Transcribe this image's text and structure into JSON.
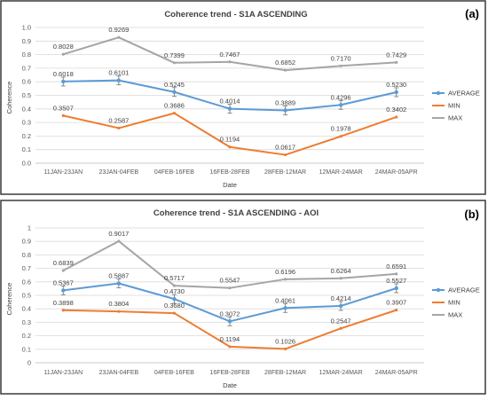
{
  "chart_data": [
    {
      "type": "line",
      "panel_label": "(a)",
      "title": "Coherence trend - S1A ASCENDING",
      "xlabel": "Date",
      "ylabel": "Coherence",
      "ylim": [
        0,
        1.0
      ],
      "yticks": [
        "0.0",
        "0.1",
        "0.2",
        "0.3",
        "0.4",
        "0.5",
        "0.6",
        "0.7",
        "0.8",
        "0.9",
        "1.0"
      ],
      "grid": true,
      "legend_position": "right",
      "categories": [
        "11JAN-23JAN",
        "23JAN-04FEB",
        "04FEB-16FEB",
        "16FEB-28FEB",
        "28FEB-12MAR",
        "12MAR-24MAR",
        "24MAR-05APR"
      ],
      "series": [
        {
          "name": "AVERAGE",
          "color": "#5b9bd5",
          "error_bars": true,
          "values": [
            0.6018,
            0.6101,
            0.5245,
            0.4014,
            0.3889,
            0.4296,
            0.523
          ],
          "labels": [
            "0.6018",
            "0.6101",
            "0.5245",
            "0.4014",
            "0.3889",
            "0.4296",
            "0.5230"
          ]
        },
        {
          "name": "MIN",
          "color": "#ed7d31",
          "error_bars": false,
          "values": [
            0.3507,
            0.2587,
            0.3686,
            0.1194,
            0.0617,
            0.1978,
            0.3402
          ],
          "labels": [
            "0.3507",
            "0.2587",
            "0.3686",
            "0.1194",
            "0.0617",
            "0.1978",
            "0.3402"
          ]
        },
        {
          "name": "MAX",
          "color": "#a5a5a5",
          "error_bars": false,
          "values": [
            0.8028,
            0.9269,
            0.7399,
            0.7467,
            0.6852,
            0.717,
            0.7429
          ],
          "labels": [
            "0.8028",
            "0.9269",
            "0.7399",
            "0.7467",
            "0.6852",
            "0.7170",
            "0.7429"
          ]
        }
      ]
    },
    {
      "type": "line",
      "panel_label": "(b)",
      "title": "Coherence trend - S1A ASCENDING - AOI",
      "xlabel": "Date",
      "ylabel": "Coherence",
      "ylim": [
        0,
        1.0
      ],
      "yticks": [
        "0",
        "0.1",
        "0.2",
        "0.3",
        "0.4",
        "0.5",
        "0.6",
        "0.7",
        "0.8",
        "0.9",
        "1"
      ],
      "grid": true,
      "legend_position": "right",
      "categories": [
        "11JAN-23JAN",
        "23JAN-04FEB",
        "04FEB-16FEB",
        "16FEB-28FEB",
        "28FEB-12MAR",
        "12MAR-24MAR",
        "24MAR-05APR"
      ],
      "series": [
        {
          "name": "AVERAGE",
          "color": "#5b9bd5",
          "error_bars": true,
          "values": [
            0.5367,
            0.5887,
            0.473,
            0.3072,
            0.4061,
            0.4214,
            0.5527
          ],
          "labels": [
            "0.5367",
            "0.5887",
            "0.4730",
            "0.3072",
            "0.4061",
            "0.4214",
            "0.5527"
          ]
        },
        {
          "name": "MIN",
          "color": "#ed7d31",
          "error_bars": false,
          "values": [
            0.3898,
            0.3804,
            0.368,
            0.1194,
            0.1026,
            0.2547,
            0.3907
          ],
          "labels": [
            "0.3898",
            "0.3804",
            "0.3680",
            "0.1194",
            "0.1026",
            "0.2547",
            "0.3907"
          ]
        },
        {
          "name": "MAX",
          "color": "#a5a5a5",
          "error_bars": false,
          "values": [
            0.6839,
            0.9017,
            0.5717,
            0.5547,
            0.6196,
            0.6264,
            0.6591
          ],
          "labels": [
            "0.6839",
            "0.9017",
            "0.5717",
            "0.5547",
            "0.6196",
            "0.6264",
            "0.6591"
          ]
        }
      ]
    }
  ]
}
